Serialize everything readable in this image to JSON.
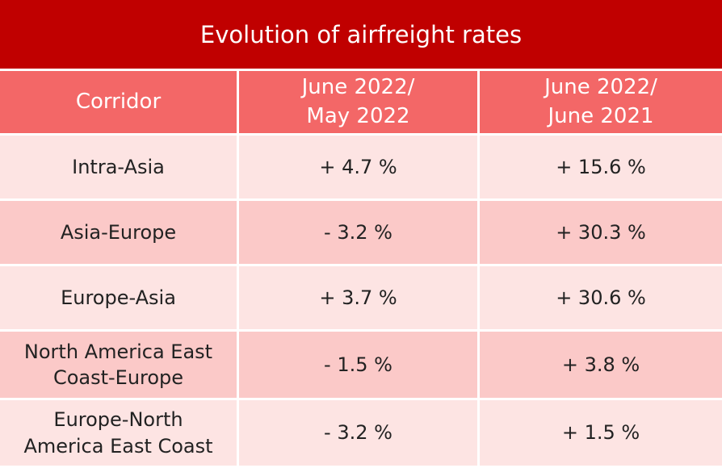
{
  "title": "Evolution of airfreight rates",
  "table": {
    "header": [
      "Corridor",
      [
        "June 2022/",
        "May 2022"
      ],
      [
        "June 2022/",
        "June 2021"
      ]
    ],
    "rows": [
      [
        "Intra-Asia",
        "+ 4.7 %",
        "+ 15.6 %"
      ],
      [
        "Asia-Europe",
        "- 3.2 %",
        "+ 30.3 %"
      ],
      [
        "Europe-Asia",
        "+ 3.7 %",
        "+ 30.6 %"
      ],
      [
        [
          "North America East",
          "Coast-Europe"
        ],
        "- 1.5 %",
        "+ 3.8 %"
      ],
      [
        [
          "Europe-North",
          "America East Coast"
        ],
        "- 3.2 %",
        "+ 1.5 %"
      ]
    ]
  }
}
